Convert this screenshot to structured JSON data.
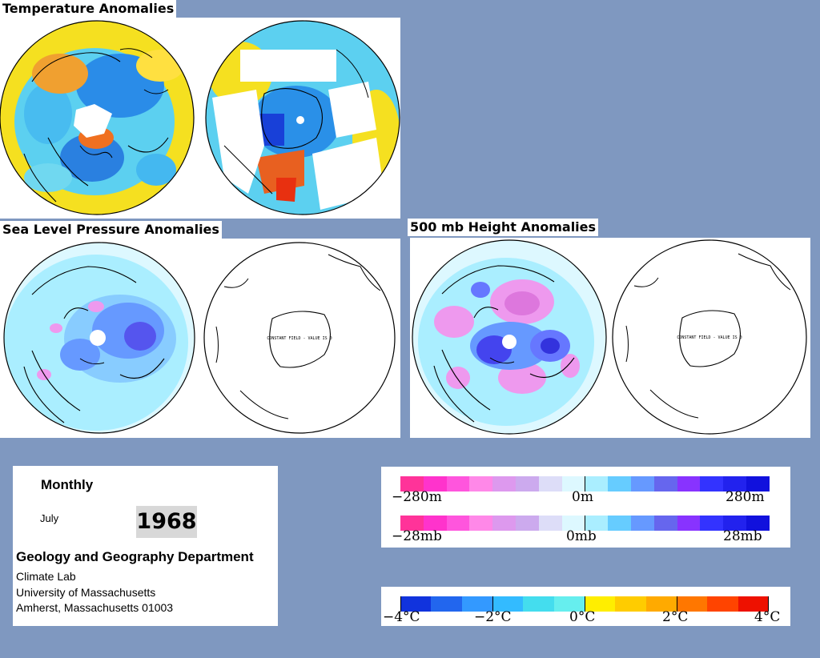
{
  "titles": {
    "temperature": "Temperature Anomalies",
    "slp": "Sea Level Pressure Anomalies",
    "height500": "500 mb Height Anomalies"
  },
  "maps": {
    "constant_field_note": "CONSTANT FIELD - VALUE IS 0"
  },
  "info": {
    "period": "Monthly",
    "month": "July",
    "year": "1968",
    "department": "Geology and Geography Department",
    "lab": "Climate Lab",
    "university": "University of Massachusetts",
    "address": "Amherst, Massachusetts 01003"
  },
  "legends": {
    "height_scale": {
      "min_label": "−280m",
      "mid_label": "0m",
      "max_label": "280m",
      "colors": [
        "#ff3399",
        "#ff33cc",
        "#ff55dd",
        "#ff88e8",
        "#dd99ee",
        "#ccaaee",
        "#ddddf8",
        "#ddf8ff",
        "#aaeeff",
        "#66ccff",
        "#6699ff",
        "#6666ee",
        "#8833ff",
        "#3333ff",
        "#2222ee",
        "#1111dd"
      ]
    },
    "pressure_scale": {
      "min_label": "−28mb",
      "mid_label": "0mb",
      "max_label": "28mb",
      "colors": [
        "#ff3399",
        "#ff33cc",
        "#ff55dd",
        "#ff88e8",
        "#dd99ee",
        "#ccaaee",
        "#ddddf8",
        "#ddf8ff",
        "#aaeeff",
        "#66ccff",
        "#6699ff",
        "#6666ee",
        "#8833ff",
        "#3333ff",
        "#2222ee",
        "#1111dd"
      ]
    },
    "temperature_scale": {
      "labels": [
        "−4°C",
        "−2°C",
        "0°C",
        "2°C",
        "4°C"
      ],
      "colors": [
        "#1133dd",
        "#2266ee",
        "#3399ff",
        "#33bbff",
        "#44ddee",
        "#66eeee",
        "#ffee00",
        "#ffcc00",
        "#ffaa00",
        "#ff7700",
        "#ff4400",
        "#ee1100"
      ]
    }
  }
}
